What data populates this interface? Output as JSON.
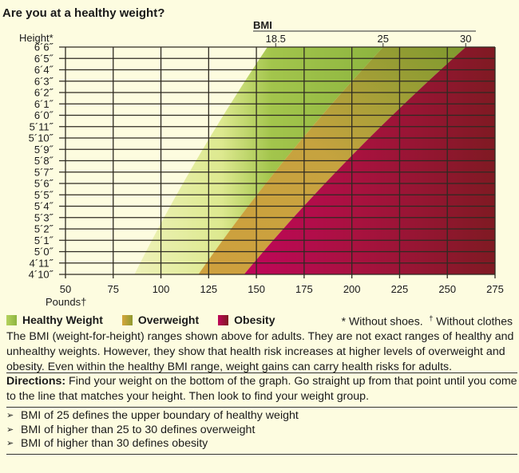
{
  "title": "Are you at a healthy weight?",
  "chart_data": {
    "type": "area",
    "title": "Are you at a healthy weight?",
    "xlabel": "Pounds†",
    "ylabel": "Height*",
    "top_axis_label": "BMI",
    "xlim": [
      50,
      275
    ],
    "x_ticks": [
      50,
      75,
      100,
      125,
      150,
      175,
      200,
      225,
      250,
      275
    ],
    "x_tick_labels": [
      "50",
      "75",
      "100",
      "125",
      "150",
      "175",
      "200",
      "225",
      "250",
      "275"
    ],
    "y_ticks_inches": [
      78,
      77,
      76,
      75,
      74,
      73,
      72,
      71,
      70,
      69,
      68,
      67,
      66,
      65,
      64,
      63,
      62,
      61,
      60,
      59,
      58
    ],
    "y_tick_labels": [
      "6´6˝",
      "6´5˝",
      "6´4˝",
      "6´3˝",
      "6´2˝",
      "6´1˝",
      "6´0˝",
      "5´11˝",
      "5´10˝",
      "5´9˝",
      "5´8˝",
      "5´7˝",
      "5´6˝",
      "5´5˝",
      "5´4˝",
      "5´3˝",
      "5´2˝",
      "5´1˝",
      "5´0˝",
      "4´11˝",
      "4´10˝"
    ],
    "bmi_ticks": [
      18.5,
      25,
      30
    ],
    "bmi_tick_labels": [
      "18.5",
      "25",
      "30"
    ],
    "regions": [
      {
        "name": "Healthy Weight",
        "bmi_min": 18.5,
        "bmi_max": 25,
        "color": "#9fc24a"
      },
      {
        "name": "Overweight",
        "bmi_min": 25,
        "bmi_max": 30,
        "color": "#c9a13e"
      },
      {
        "name": "Obesity",
        "bmi_min": 30,
        "bmi_max": null,
        "color": "#b8084f"
      }
    ],
    "region_boundaries_lbs": {
      "healthy_start_at_4ft10": 90,
      "healthy_start_at_6ft6": 155,
      "overweight_start_at_4ft10": 119,
      "overweight_start_at_6ft6": 216,
      "obesity_start_at_4ft10": 145,
      "obesity_start_at_6ft6": 259
    },
    "grid": true,
    "legend_position": "bottom-left"
  },
  "legend": [
    {
      "label": "Healthy Weight",
      "color": "#9fc24a"
    },
    {
      "label": "Overweight",
      "color": "#c9a13e"
    },
    {
      "label": "Obesity",
      "color": "#b8084f"
    }
  ],
  "footnote": {
    "star": "* Without shoes.",
    "dagger_mark": "†",
    "dagger": " Without clothes"
  },
  "description": "The BMI (weight-for-height) ranges shown above for adults. They are not exact ranges of healthy and unhealthy weights. However, they show that health risk increases at higher levels of overweight and obesity. Even within the healthy BMI range, weight gains can carry health risks for adults.",
  "directions": {
    "label": "Directions:",
    "text": " Find your weight on the bottom of the graph. Go straight up from that point until you come to the line that matches your height. Then look to find your weight group."
  },
  "bullets": [
    {
      "marker": "➢",
      "text": "BMI of 25 defines the upper boundary of healthy weight"
    },
    {
      "marker": "➢",
      "text": "BMI of higher than 25 to 30 defines overweight"
    },
    {
      "marker": "➢",
      "text": "BMI of higher than 30 defines obesity"
    }
  ]
}
